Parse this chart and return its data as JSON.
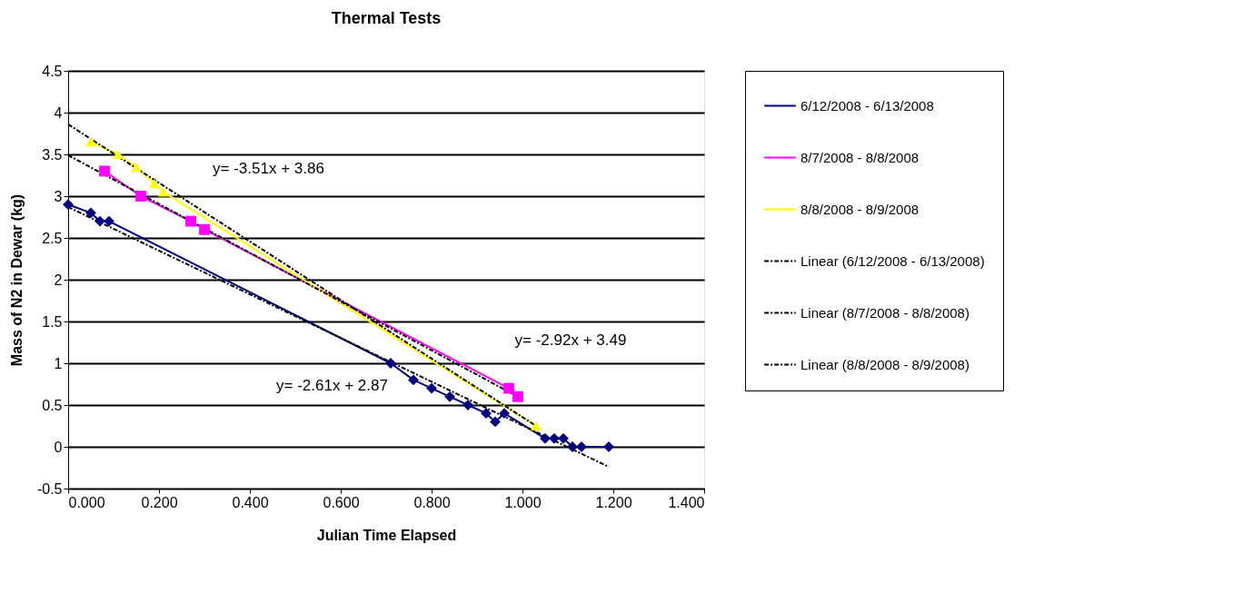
{
  "chart_data": {
    "type": "line",
    "title": "Thermal Tests",
    "xlabel": "Julian Time Elapsed",
    "ylabel": "Mass of N2 in Dewar (kg)",
    "xlim": [
      0,
      1.4
    ],
    "ylim": [
      -0.5,
      4.5
    ],
    "xticks": [
      {
        "value": 0,
        "label": "0.000"
      },
      {
        "value": 0.2,
        "label": "0.200"
      },
      {
        "value": 0.4,
        "label": "0.400"
      },
      {
        "value": 0.6,
        "label": "0.600"
      },
      {
        "value": 0.8,
        "label": "0.800"
      },
      {
        "value": 1.0,
        "label": "1.000"
      },
      {
        "value": 1.2,
        "label": "1.200"
      },
      {
        "value": 1.4,
        "label": "1.400"
      }
    ],
    "yticks": [
      -0.5,
      0,
      0.5,
      1,
      1.5,
      2,
      2.5,
      3,
      3.5,
      4,
      4.5
    ],
    "grid": "y",
    "legend": "right",
    "series": [
      {
        "name": "6/12/2008 - 6/13/2008",
        "color": "#000080",
        "marker": "diamond",
        "line_style": "solid",
        "x": [
          0.0,
          0.05,
          0.07,
          0.09,
          0.71,
          0.76,
          0.8,
          0.84,
          0.88,
          0.92,
          0.94,
          0.96,
          1.05,
          1.07,
          1.09,
          1.11,
          1.13,
          1.19
        ],
        "values": [
          2.9,
          2.8,
          2.7,
          2.7,
          1.0,
          0.8,
          0.7,
          0.6,
          0.5,
          0.4,
          0.3,
          0.4,
          0.1,
          0.1,
          0.1,
          0.0,
          0.0,
          0.0
        ]
      },
      {
        "name": "8/7/2008 - 8/8/2008",
        "color": "#ff00ff",
        "marker": "square",
        "line_style": "solid",
        "x": [
          0.08,
          0.16,
          0.27,
          0.3,
          0.97,
          0.99
        ],
        "values": [
          3.3,
          3.0,
          2.7,
          2.6,
          0.7,
          0.6
        ]
      },
      {
        "name": "8/8/2008 - 8/9/2008",
        "color": "#ffff00",
        "marker": "triangle",
        "line_style": "solid",
        "x": [
          0.05,
          0.11,
          0.15,
          0.19,
          0.21,
          1.03
        ],
        "values": [
          3.65,
          3.5,
          3.35,
          3.15,
          3.05,
          0.25
        ]
      },
      {
        "name": "Linear (6/12/2008 - 6/13/2008)",
        "color": "#000000",
        "marker": "none",
        "line_style": "dashed",
        "x": [
          0,
          1.19
        ],
        "values": [
          2.87,
          -0.24
        ]
      },
      {
        "name": "Linear (8/7/2008 - 8/8/2008)",
        "color": "#000000",
        "marker": "none",
        "line_style": "dashed",
        "x": [
          0,
          0.99
        ],
        "values": [
          3.49,
          0.6
        ]
      },
      {
        "name": "Linear (8/8/2008 - 8/9/2008)",
        "color": "#000000",
        "marker": "none",
        "line_style": "dashed",
        "x": [
          0,
          1.03
        ],
        "values": [
          3.86,
          0.25
        ]
      }
    ],
    "annotations": [
      "y= -3.51x + 3.86",
      "y= -2.92x + 3.49",
      "y= -2.61x + 2.87"
    ]
  }
}
